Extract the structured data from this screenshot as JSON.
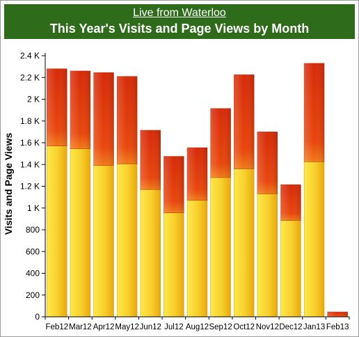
{
  "header": {
    "link_text": "Live from Waterloo",
    "title": "This Year's Visits and Page Views by Month"
  },
  "chart_data": {
    "type": "bar",
    "stacked": true,
    "ylabel": "Visits and Page Views",
    "ylim": [
      0,
      2400
    ],
    "y_ticks": [
      0,
      200,
      400,
      600,
      800,
      1000,
      1200,
      1400,
      1600,
      1800,
      2000,
      2200,
      2400
    ],
    "y_tick_labels": [
      "0",
      "200",
      "400",
      "600",
      "800",
      "1 K",
      "1.2 K",
      "1.4 K",
      "1.6 K",
      "1.8 K",
      "2 K",
      "2.2 K",
      "2.4 K"
    ],
    "categories": [
      "Feb12",
      "Mar12",
      "Apr12",
      "May12",
      "Jun12",
      "Jul12",
      "Aug12",
      "Sep12",
      "Oct12",
      "Nov12",
      "Dec12",
      "Jan13",
      "Feb13"
    ],
    "series": [
      {
        "values": [
          1570,
          1545,
          1390,
          1405,
          1170,
          955,
          1070,
          1280,
          1360,
          1130,
          885,
          1425,
          0
        ]
      },
      {
        "values": [
          710,
          715,
          855,
          805,
          545,
          520,
          485,
          635,
          865,
          570,
          330,
          905,
          45
        ]
      }
    ],
    "grid": false,
    "colors": {
      "bottom_light": "#fde94a",
      "bottom_dark": "#e8a80e",
      "top_light": "#ff5a10",
      "top_dark": "#d62a08",
      "mid_blend": "#f07a18"
    }
  }
}
